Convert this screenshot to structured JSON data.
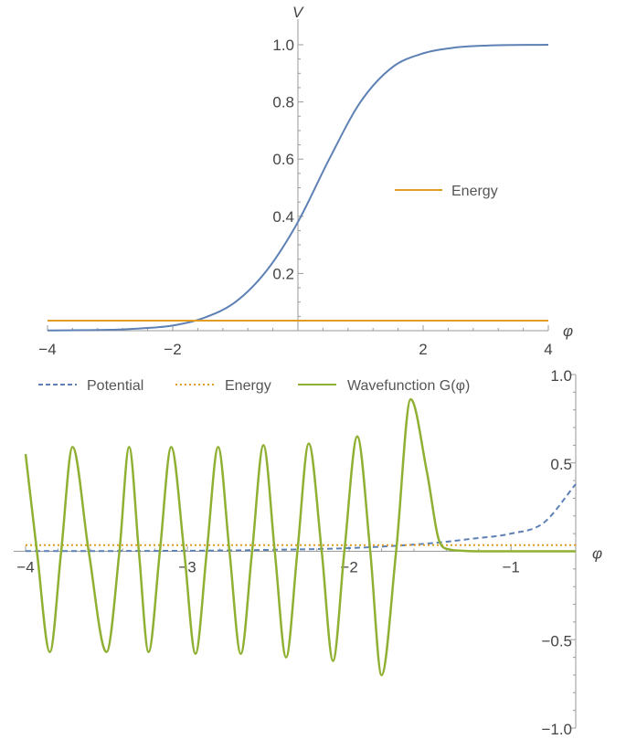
{
  "chart_data": [
    {
      "type": "line",
      "title": "",
      "xlabel": "φ",
      "ylabel": "V",
      "xlim": [
        -4,
        4
      ],
      "ylim": [
        0,
        1.0
      ],
      "x_ticks": [
        -4,
        -2,
        2,
        4
      ],
      "x_tick_labels": [
        "−4",
        "−2",
        "2",
        "4"
      ],
      "y_ticks": [
        0.2,
        0.4,
        0.6,
        0.8,
        1.0
      ],
      "y_tick_labels": [
        "0.2",
        "0.4",
        "0.6",
        "0.8",
        "1.0"
      ],
      "legend_position": "center-right",
      "series": [
        {
          "color": "#5e81b5",
          "x": [
            -4,
            -3,
            -2.5,
            -2,
            -1.5,
            -1,
            -0.5,
            0,
            0.5,
            1,
            1.5,
            2,
            2.5,
            3,
            4
          ],
          "y": [
            0.001,
            0.003,
            0.008,
            0.018,
            0.045,
            0.1,
            0.21,
            0.38,
            0.6,
            0.8,
            0.92,
            0.97,
            0.99,
            0.997,
            1.0
          ]
        },
        {
          "name": "Energy",
          "color": "#e19c24",
          "x": [
            -4,
            4
          ],
          "y": [
            0.035,
            0.035
          ]
        }
      ]
    },
    {
      "type": "line",
      "title": "",
      "xlabel": "φ",
      "ylabel": "",
      "xlim": [
        -4,
        -0.6
      ],
      "ylim": [
        -1.0,
        1.0
      ],
      "x_ticks": [
        -4,
        -3,
        -2,
        -1
      ],
      "x_tick_labels": [
        "−4",
        "−3",
        "−2",
        "−1"
      ],
      "y_ticks": [
        -1.0,
        -0.5,
        0.5,
        1.0
      ],
      "y_tick_labels": [
        "−1.0",
        "−0.5",
        "0.5",
        "1.0"
      ],
      "legend_position": "top",
      "series": [
        {
          "name": "Potential",
          "style": "dashed",
          "color": "#5e81b5",
          "x": [
            -4,
            -3,
            -2.5,
            -2,
            -1.5,
            -1.25,
            -1,
            -0.8,
            -0.6
          ],
          "y": [
            0.001,
            0.003,
            0.008,
            0.018,
            0.045,
            0.07,
            0.1,
            0.16,
            0.38
          ]
        },
        {
          "name": "Energy",
          "style": "dotted",
          "color": "#e19c24",
          "x": [
            -4,
            -0.6
          ],
          "y": [
            0.035,
            0.035
          ]
        },
        {
          "name": "Wavefunction G(φ)",
          "color": "#8fb032",
          "x": [
            -4,
            -3.93,
            -3.85,
            -3.78,
            -3.71,
            -3.61,
            -3.5,
            -3.42,
            -3.36,
            -3.3,
            -3.24,
            -3.17,
            -3.1,
            -3.02,
            -2.95,
            -2.88,
            -2.81,
            -2.74,
            -2.67,
            -2.6,
            -2.53,
            -2.46,
            -2.39,
            -2.32,
            -2.25,
            -2.17,
            -2.1,
            -2.03,
            -1.95,
            -1.87,
            -1.8,
            -1.71,
            -1.62,
            -1.52,
            -1.44,
            -1.38,
            -1.3,
            -1.22,
            -1.15,
            -1.0,
            -0.8,
            -0.6
          ],
          "y": [
            0.55,
            0.0,
            -0.57,
            0.0,
            0.59,
            0.0,
            -0.57,
            0.0,
            0.59,
            0.0,
            -0.57,
            0.0,
            0.59,
            0.0,
            -0.58,
            0.0,
            0.59,
            0.0,
            -0.58,
            0.0,
            0.6,
            0.0,
            -0.6,
            0.0,
            0.61,
            0.0,
            -0.62,
            0.0,
            0.65,
            0.0,
            -0.7,
            0.0,
            0.86,
            0.45,
            0.05,
            0.01,
            0.003,
            0.0,
            0.0,
            0.0,
            0.0,
            0.0
          ]
        }
      ]
    }
  ]
}
